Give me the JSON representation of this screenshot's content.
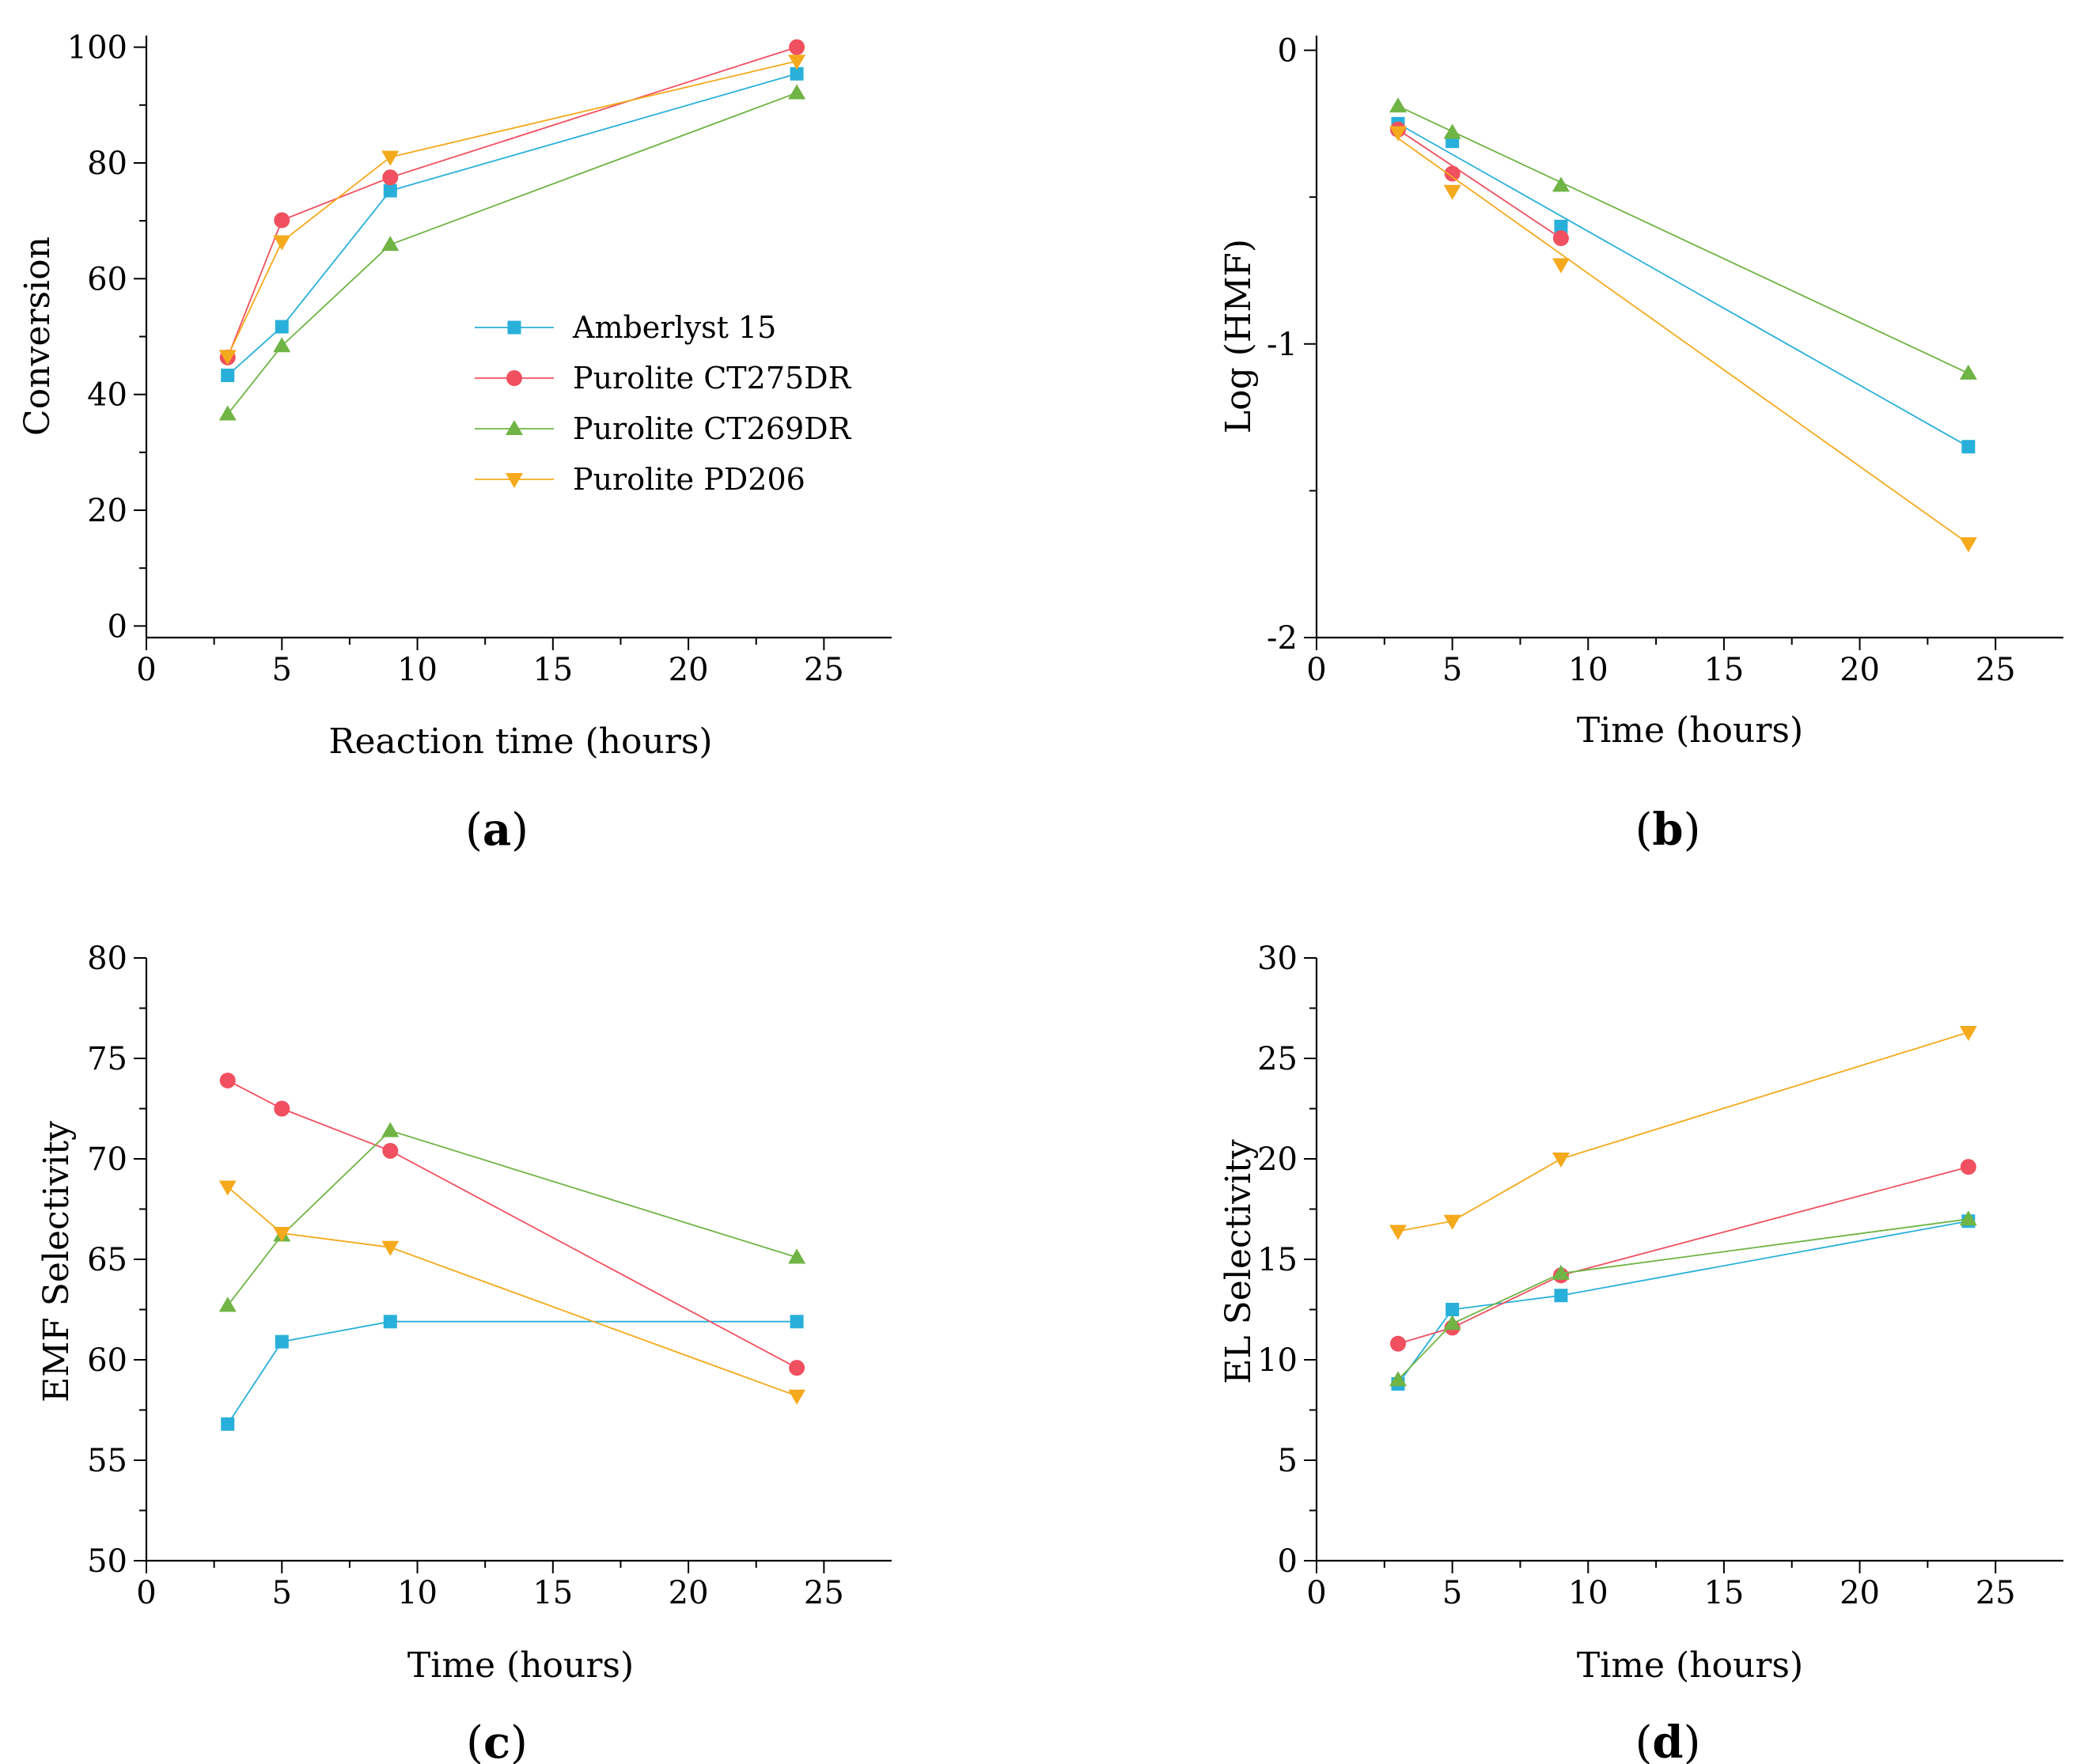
{
  "chart_data": [
    {
      "type": "line",
      "panel_label": "a",
      "title": "",
      "xlabel": "Reaction time (hours)",
      "ylabel": "Conversion",
      "xlim": [
        0,
        27.5
      ],
      "ylim": [
        -2,
        102
      ],
      "xticks": [
        0,
        5,
        10,
        15,
        20,
        25
      ],
      "yticks": [
        0,
        20,
        40,
        60,
        80,
        100
      ],
      "legend": {
        "position": "center",
        "entries": [
          "Amberlyst 15",
          "Purolite CT275DR",
          "Purolite CT269DR",
          "Purolite PD206"
        ]
      },
      "x": [
        3,
        5,
        9,
        24
      ],
      "series": [
        {
          "name": "Amberlyst 15",
          "values": [
            43.3,
            51.7,
            75.2,
            95.4
          ]
        },
        {
          "name": "Purolite CT275DR",
          "values": [
            46.4,
            70.1,
            77.5,
            100.0
          ]
        },
        {
          "name": "Purolite CT269DR",
          "values": [
            36.6,
            48.4,
            65.9,
            92.1
          ]
        },
        {
          "name": "Purolite PD206",
          "values": [
            46.6,
            66.4,
            81.0,
            97.6
          ]
        }
      ]
    },
    {
      "type": "line",
      "panel_label": "b",
      "title": "",
      "xlabel": "Time (hours)",
      "ylabel": "Log (HMF)",
      "xlim": [
        0,
        27.5
      ],
      "ylim": [
        -2,
        0.05
      ],
      "xticks": [
        0,
        5,
        10,
        15,
        20,
        25
      ],
      "yticks": [
        0,
        -1,
        -2
      ],
      "x": [
        3,
        5,
        9,
        24
      ],
      "series": [
        {
          "name": "Amberlyst 15",
          "values": [
            -0.25,
            -0.31,
            -0.6,
            -1.35
          ],
          "fit": [
            [
              3,
              -0.25
            ],
            [
              24,
              -1.35
            ]
          ]
        },
        {
          "name": "Purolite CT275DR",
          "values": [
            -0.27,
            -0.42,
            -0.64,
            null
          ],
          "fit": [
            [
              3,
              -0.27
            ],
            [
              9,
              -0.64
            ]
          ]
        },
        {
          "name": "Purolite CT269DR",
          "values": [
            -0.19,
            -0.28,
            -0.46,
            -1.1
          ],
          "fit": [
            [
              3,
              -0.19
            ],
            [
              24,
              -1.1
            ]
          ]
        },
        {
          "name": "Purolite PD206",
          "values": [
            -0.28,
            -0.48,
            -0.73,
            -1.68
          ],
          "fit": [
            [
              3,
              -0.3
            ],
            [
              24,
              -1.68
            ]
          ]
        }
      ]
    },
    {
      "type": "line",
      "panel_label": "c",
      "title": "",
      "xlabel": "Time (hours)",
      "ylabel": "EMF Selectivity",
      "xlim": [
        0,
        27.5
      ],
      "ylim": [
        50,
        80
      ],
      "xticks": [
        0,
        5,
        10,
        15,
        20,
        25
      ],
      "yticks": [
        50,
        55,
        60,
        65,
        70,
        75,
        80
      ],
      "x": [
        3,
        5,
        9,
        24
      ],
      "series": [
        {
          "name": "Amberlyst 15",
          "values": [
            56.8,
            60.9,
            61.9,
            61.9
          ]
        },
        {
          "name": "Purolite CT275DR",
          "values": [
            73.9,
            72.5,
            70.4,
            59.6
          ]
        },
        {
          "name": "Purolite CT269DR",
          "values": [
            62.7,
            66.2,
            71.4,
            65.1
          ]
        },
        {
          "name": "Purolite PD206",
          "values": [
            68.6,
            66.3,
            65.6,
            58.2
          ]
        }
      ]
    },
    {
      "type": "line",
      "panel_label": "d",
      "title": "",
      "xlabel": "Time (hours)",
      "ylabel": "EL Selectivity",
      "xlim": [
        0,
        27.5
      ],
      "ylim": [
        0,
        30
      ],
      "xticks": [
        0,
        5,
        10,
        15,
        20,
        25
      ],
      "yticks": [
        0,
        5,
        10,
        15,
        20,
        25,
        30
      ],
      "x": [
        3,
        5,
        9,
        24
      ],
      "series": [
        {
          "name": "Amberlyst 15",
          "values": [
            8.8,
            12.5,
            13.2,
            16.9
          ]
        },
        {
          "name": "Purolite CT275DR",
          "values": [
            10.8,
            11.6,
            14.2,
            19.6
          ]
        },
        {
          "name": "Purolite CT269DR",
          "values": [
            9.0,
            11.8,
            14.3,
            17.0
          ]
        },
        {
          "name": "Purolite PD206",
          "values": [
            16.4,
            16.9,
            20.0,
            26.3
          ]
        }
      ]
    }
  ],
  "series_style": {
    "Amberlyst 15": {
      "color": "#29B0DA",
      "marker": "square"
    },
    "Purolite CT275DR": {
      "color": "#F0505F",
      "marker": "circle"
    },
    "Purolite CT269DR": {
      "color": "#6FB444",
      "marker": "triangle-up"
    },
    "Purolite PD206": {
      "color": "#F5A91C",
      "marker": "triangle-down"
    }
  }
}
